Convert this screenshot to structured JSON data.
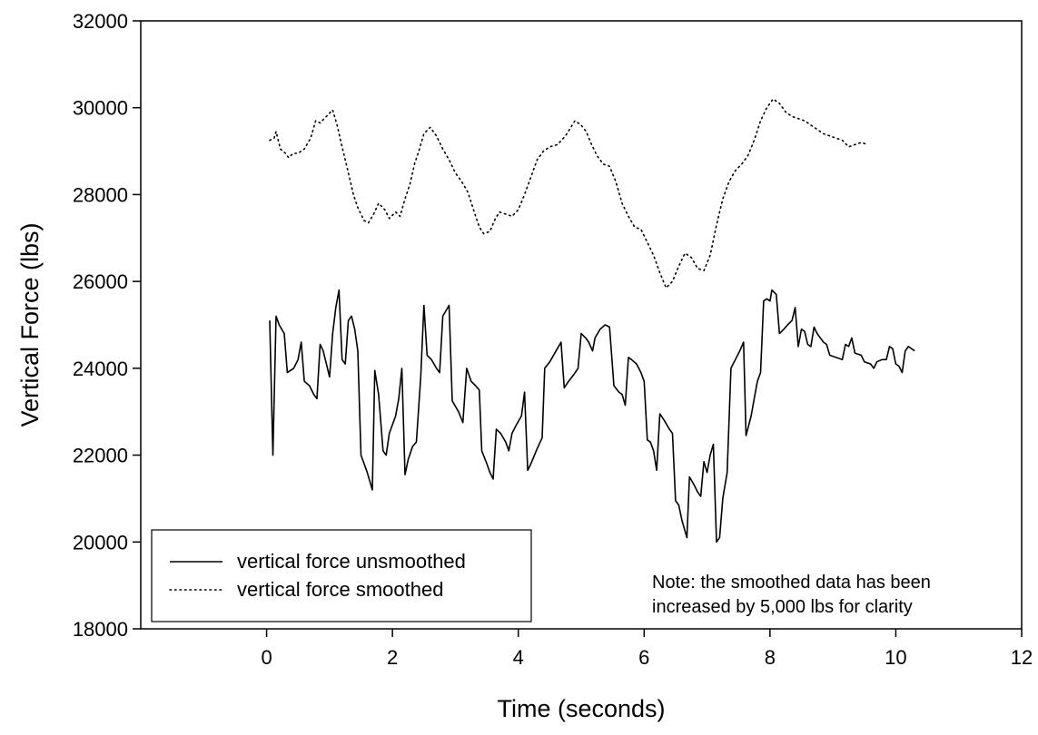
{
  "chart_data": {
    "type": "line",
    "xlabel": "Time (seconds)",
    "ylabel": "Vertical Force (lbs)",
    "xlim": [
      -2,
      12
    ],
    "ylim": [
      18000,
      32000
    ],
    "x_ticks": [
      0,
      2,
      4,
      6,
      8,
      10,
      12
    ],
    "y_ticks": [
      18000,
      20000,
      22000,
      24000,
      26000,
      28000,
      30000,
      32000
    ],
    "x_tick_labels": [
      "0",
      "2",
      "4",
      "6",
      "8",
      "10",
      "12"
    ],
    "y_tick_labels": [
      "18000",
      "20000",
      "22000",
      "24000",
      "26000",
      "28000",
      "30000",
      "32000"
    ],
    "grid": false,
    "legend_position": "bottom-left",
    "note": [
      "Note: the smoothed data has been",
      "increased by 5,000 lbs for clarity"
    ],
    "series": [
      {
        "name": "vertical force unsmoothed",
        "style": "solid",
        "color": "#000000",
        "points": [
          [
            0.05,
            25100
          ],
          [
            0.1,
            22000
          ],
          [
            0.15,
            25200
          ],
          [
            0.2,
            25000
          ],
          [
            0.28,
            24800
          ],
          [
            0.33,
            23900
          ],
          [
            0.43,
            24000
          ],
          [
            0.5,
            24200
          ],
          [
            0.55,
            24600
          ],
          [
            0.6,
            23700
          ],
          [
            0.68,
            23600
          ],
          [
            0.75,
            23400
          ],
          [
            0.8,
            23300
          ],
          [
            0.85,
            24550
          ],
          [
            0.9,
            24400
          ],
          [
            0.95,
            24100
          ],
          [
            1.0,
            23800
          ],
          [
            1.05,
            24800
          ],
          [
            1.1,
            25400
          ],
          [
            1.15,
            25800
          ],
          [
            1.2,
            24200
          ],
          [
            1.25,
            24100
          ],
          [
            1.3,
            25100
          ],
          [
            1.35,
            25200
          ],
          [
            1.4,
            24900
          ],
          [
            1.45,
            24400
          ],
          [
            1.5,
            22000
          ],
          [
            1.55,
            21800
          ],
          [
            1.6,
            21600
          ],
          [
            1.68,
            21200
          ],
          [
            1.72,
            23950
          ],
          [
            1.78,
            23400
          ],
          [
            1.85,
            22100
          ],
          [
            1.9,
            22000
          ],
          [
            1.95,
            22500
          ],
          [
            2.0,
            22700
          ],
          [
            2.05,
            22900
          ],
          [
            2.1,
            23300
          ],
          [
            2.15,
            24000
          ],
          [
            2.2,
            21550
          ],
          [
            2.25,
            21900
          ],
          [
            2.32,
            22200
          ],
          [
            2.38,
            22300
          ],
          [
            2.45,
            23800
          ],
          [
            2.5,
            25450
          ],
          [
            2.55,
            24300
          ],
          [
            2.62,
            24200
          ],
          [
            2.7,
            24000
          ],
          [
            2.75,
            23900
          ],
          [
            2.8,
            25200
          ],
          [
            2.9,
            25450
          ],
          [
            2.95,
            23250
          ],
          [
            3.05,
            23000
          ],
          [
            3.12,
            22750
          ],
          [
            3.18,
            24000
          ],
          [
            3.25,
            23700
          ],
          [
            3.32,
            23600
          ],
          [
            3.38,
            23500
          ],
          [
            3.42,
            22100
          ],
          [
            3.5,
            21800
          ],
          [
            3.55,
            21600
          ],
          [
            3.6,
            21450
          ],
          [
            3.65,
            22600
          ],
          [
            3.72,
            22500
          ],
          [
            3.8,
            22300
          ],
          [
            3.85,
            22100
          ],
          [
            3.9,
            22500
          ],
          [
            3.97,
            22700
          ],
          [
            4.05,
            22900
          ],
          [
            4.1,
            23450
          ],
          [
            4.15,
            21650
          ],
          [
            4.2,
            21800
          ],
          [
            4.3,
            22150
          ],
          [
            4.38,
            22400
          ],
          [
            4.42,
            24000
          ],
          [
            4.5,
            24150
          ],
          [
            4.6,
            24400
          ],
          [
            4.68,
            24600
          ],
          [
            4.73,
            23550
          ],
          [
            4.8,
            23700
          ],
          [
            4.88,
            23850
          ],
          [
            4.95,
            24000
          ],
          [
            5.0,
            24800
          ],
          [
            5.07,
            24700
          ],
          [
            5.12,
            24600
          ],
          [
            5.18,
            24400
          ],
          [
            5.22,
            24700
          ],
          [
            5.3,
            24900
          ],
          [
            5.38,
            25000
          ],
          [
            5.45,
            24950
          ],
          [
            5.52,
            23600
          ],
          [
            5.6,
            23450
          ],
          [
            5.65,
            23400
          ],
          [
            5.7,
            23150
          ],
          [
            5.75,
            24250
          ],
          [
            5.8,
            24200
          ],
          [
            5.88,
            24100
          ],
          [
            5.95,
            23900
          ],
          [
            6.0,
            23700
          ],
          [
            6.05,
            22350
          ],
          [
            6.1,
            22300
          ],
          [
            6.15,
            22100
          ],
          [
            6.2,
            21650
          ],
          [
            6.25,
            22950
          ],
          [
            6.32,
            22800
          ],
          [
            6.4,
            22600
          ],
          [
            6.45,
            22500
          ],
          [
            6.5,
            20950
          ],
          [
            6.55,
            20850
          ],
          [
            6.6,
            20500
          ],
          [
            6.68,
            20100
          ],
          [
            6.72,
            21500
          ],
          [
            6.8,
            21300
          ],
          [
            6.85,
            21150
          ],
          [
            6.9,
            21050
          ],
          [
            6.95,
            21850
          ],
          [
            7.0,
            21600
          ],
          [
            7.05,
            22000
          ],
          [
            7.1,
            22250
          ],
          [
            7.15,
            20000
          ],
          [
            7.2,
            20100
          ],
          [
            7.25,
            21000
          ],
          [
            7.32,
            21600
          ],
          [
            7.38,
            24000
          ],
          [
            7.45,
            24200
          ],
          [
            7.52,
            24400
          ],
          [
            7.58,
            24600
          ],
          [
            7.62,
            22450
          ],
          [
            7.7,
            22900
          ],
          [
            7.75,
            23300
          ],
          [
            7.8,
            23700
          ],
          [
            7.85,
            23900
          ],
          [
            7.9,
            25550
          ],
          [
            7.95,
            25600
          ],
          [
            8.0,
            25550
          ],
          [
            8.03,
            25800
          ],
          [
            8.1,
            25700
          ],
          [
            8.15,
            24800
          ],
          [
            8.22,
            24900
          ],
          [
            8.28,
            25000
          ],
          [
            8.35,
            25100
          ],
          [
            8.4,
            25400
          ],
          [
            8.45,
            24500
          ],
          [
            8.5,
            24900
          ],
          [
            8.55,
            24850
          ],
          [
            8.6,
            24550
          ],
          [
            8.65,
            24500
          ],
          [
            8.7,
            24950
          ],
          [
            8.75,
            24800
          ],
          [
            8.85,
            24600
          ],
          [
            8.9,
            24550
          ],
          [
            8.95,
            24300
          ],
          [
            9.05,
            24250
          ],
          [
            9.15,
            24200
          ],
          [
            9.2,
            24550
          ],
          [
            9.25,
            24500
          ],
          [
            9.3,
            24700
          ],
          [
            9.35,
            24350
          ],
          [
            9.45,
            24300
          ],
          [
            9.5,
            24150
          ],
          [
            9.6,
            24100
          ],
          [
            9.65,
            24000
          ],
          [
            9.7,
            24150
          ],
          [
            9.78,
            24200
          ],
          [
            9.85,
            24200
          ],
          [
            9.9,
            24500
          ],
          [
            9.95,
            24450
          ],
          [
            10.0,
            24100
          ],
          [
            10.05,
            24050
          ],
          [
            10.1,
            23900
          ],
          [
            10.15,
            24400
          ],
          [
            10.2,
            24500
          ],
          [
            10.3,
            24400
          ]
        ]
      },
      {
        "name": "vertical force smoothed",
        "style": "dotted",
        "color": "#000000",
        "points": [
          [
            0.05,
            29250
          ],
          [
            0.12,
            29300
          ],
          [
            0.15,
            29450
          ],
          [
            0.22,
            29050
          ],
          [
            0.3,
            28950
          ],
          [
            0.35,
            28850
          ],
          [
            0.42,
            28950
          ],
          [
            0.5,
            28950
          ],
          [
            0.6,
            29050
          ],
          [
            0.7,
            29300
          ],
          [
            0.78,
            29700
          ],
          [
            0.85,
            29650
          ],
          [
            0.95,
            29800
          ],
          [
            1.05,
            29950
          ],
          [
            1.12,
            29600
          ],
          [
            1.2,
            29100
          ],
          [
            1.3,
            28500
          ],
          [
            1.38,
            28000
          ],
          [
            1.45,
            27700
          ],
          [
            1.55,
            27400
          ],
          [
            1.62,
            27350
          ],
          [
            1.7,
            27550
          ],
          [
            1.78,
            27800
          ],
          [
            1.88,
            27650
          ],
          [
            1.95,
            27450
          ],
          [
            2.05,
            27600
          ],
          [
            2.12,
            27500
          ],
          [
            2.2,
            27900
          ],
          [
            2.28,
            28250
          ],
          [
            2.35,
            28700
          ],
          [
            2.42,
            29000
          ],
          [
            2.5,
            29400
          ],
          [
            2.6,
            29550
          ],
          [
            2.7,
            29350
          ],
          [
            2.8,
            29050
          ],
          [
            2.9,
            28800
          ],
          [
            3.0,
            28500
          ],
          [
            3.1,
            28300
          ],
          [
            3.2,
            28050
          ],
          [
            3.3,
            27600
          ],
          [
            3.38,
            27250
          ],
          [
            3.45,
            27100
          ],
          [
            3.55,
            27150
          ],
          [
            3.62,
            27400
          ],
          [
            3.7,
            27600
          ],
          [
            3.8,
            27550
          ],
          [
            3.9,
            27500
          ],
          [
            4.0,
            27650
          ],
          [
            4.1,
            28000
          ],
          [
            4.2,
            28400
          ],
          [
            4.3,
            28800
          ],
          [
            4.4,
            29000
          ],
          [
            4.5,
            29100
          ],
          [
            4.62,
            29150
          ],
          [
            4.75,
            29350
          ],
          [
            4.9,
            29700
          ],
          [
            5.0,
            29600
          ],
          [
            5.08,
            29450
          ],
          [
            5.15,
            29200
          ],
          [
            5.25,
            28900
          ],
          [
            5.35,
            28700
          ],
          [
            5.45,
            28650
          ],
          [
            5.55,
            28300
          ],
          [
            5.65,
            27800
          ],
          [
            5.75,
            27500
          ],
          [
            5.85,
            27250
          ],
          [
            5.95,
            27200
          ],
          [
            6.05,
            26900
          ],
          [
            6.15,
            26600
          ],
          [
            6.25,
            26200
          ],
          [
            6.35,
            25850
          ],
          [
            6.45,
            26000
          ],
          [
            6.55,
            26350
          ],
          [
            6.65,
            26650
          ],
          [
            6.75,
            26550
          ],
          [
            6.85,
            26300
          ],
          [
            6.95,
            26250
          ],
          [
            7.05,
            26600
          ],
          [
            7.15,
            27300
          ],
          [
            7.25,
            27900
          ],
          [
            7.35,
            28300
          ],
          [
            7.45,
            28550
          ],
          [
            7.55,
            28700
          ],
          [
            7.65,
            28900
          ],
          [
            7.75,
            29250
          ],
          [
            7.85,
            29700
          ],
          [
            7.95,
            30000
          ],
          [
            8.05,
            30200
          ],
          [
            8.15,
            30100
          ],
          [
            8.25,
            29900
          ],
          [
            8.35,
            29800
          ],
          [
            8.45,
            29750
          ],
          [
            8.55,
            29700
          ],
          [
            8.65,
            29600
          ],
          [
            8.75,
            29500
          ],
          [
            8.85,
            29400
          ],
          [
            8.95,
            29350
          ],
          [
            9.05,
            29300
          ],
          [
            9.15,
            29250
          ],
          [
            9.25,
            29100
          ],
          [
            9.35,
            29150
          ],
          [
            9.45,
            29200
          ],
          [
            9.55,
            29150
          ]
        ]
      }
    ]
  }
}
